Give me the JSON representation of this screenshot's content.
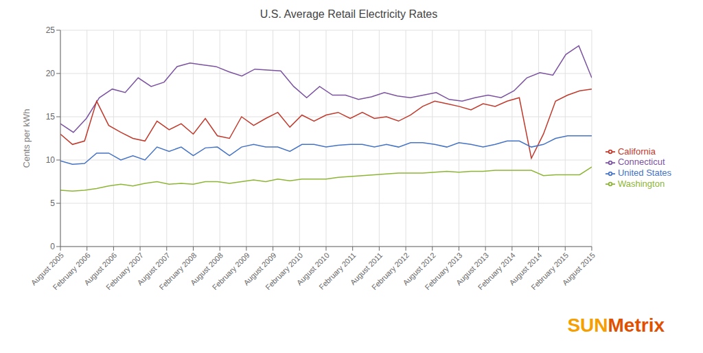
{
  "chart_data": {
    "type": "line",
    "title": "U.S. Average Retail Electricity Rates",
    "ylabel": "Cents per kWh",
    "xlim": [
      0,
      20
    ],
    "xticks": [
      {
        "value": 0,
        "label": "August 2005"
      },
      {
        "value": 1,
        "label": "February 2006"
      },
      {
        "value": 2,
        "label": "August 2006"
      },
      {
        "value": 3,
        "label": "February 2007"
      },
      {
        "value": 4,
        "label": "August 2007"
      },
      {
        "value": 5,
        "label": "February 2008"
      },
      {
        "value": 6,
        "label": "August 2008"
      },
      {
        "value": 7,
        "label": "February 2009"
      },
      {
        "value": 8,
        "label": "August 2009"
      },
      {
        "value": 9,
        "label": "February 2010"
      },
      {
        "value": 10,
        "label": "August 2010"
      },
      {
        "value": 11,
        "label": "February 2011"
      },
      {
        "value": 12,
        "label": "August 2011"
      },
      {
        "value": 13,
        "label": "February 2012"
      },
      {
        "value": 14,
        "label": "August 2012"
      },
      {
        "value": 15,
        "label": "February 2013"
      },
      {
        "value": 16,
        "label": "August 2013"
      },
      {
        "value": 17,
        "label": "February 2014"
      },
      {
        "value": 18,
        "label": "August 2014"
      },
      {
        "value": 19,
        "label": "February 2015"
      },
      {
        "value": 20,
        "label": "August 2015"
      }
    ],
    "ylim": [
      0,
      25
    ],
    "yticks": [
      0,
      5,
      10,
      15,
      20,
      25
    ],
    "grid": true,
    "legend": "right",
    "annotations": [
      "SUN",
      "Metrix"
    ],
    "series": [
      {
        "name": "Connecticut",
        "color": "#7b52a0",
        "x": [
          0,
          0.4878,
          0.9756,
          1.4634,
          1.9512,
          2.439,
          2.9268,
          3.4146,
          3.9024,
          4.3902,
          4.878,
          5.3659,
          5.8537,
          6.3415,
          6.8293,
          7.3171,
          7.8049,
          8.2927,
          8.7805,
          9.2683,
          9.7561,
          10.2439,
          10.7317,
          11.2195,
          11.7073,
          12.1951,
          12.6829,
          13.1707,
          13.6585,
          14.1463,
          14.6341,
          15.122,
          15.6098,
          16.0976,
          16.5854,
          17.0732,
          17.561,
          18.0488,
          18.5366,
          19.0244,
          19.5122,
          20
        ],
        "values": [
          14.2,
          13.2,
          14.8,
          17.2,
          18.2,
          17.8,
          19.5,
          18.5,
          19.0,
          20.8,
          21.2,
          21.0,
          20.8,
          20.2,
          19.7,
          20.5,
          20.4,
          20.3,
          18.5,
          17.2,
          18.5,
          17.5,
          17.5,
          17.0,
          17.3,
          17.8,
          17.4,
          17.2,
          17.5,
          17.8,
          17.0,
          16.8,
          17.2,
          17.5,
          17.2,
          18.0,
          19.5,
          20.1,
          19.8,
          22.2,
          23.2,
          19.5
        ]
      },
      {
        "name": "California",
        "color": "#c0392b",
        "x": [
          0,
          0.4545,
          0.9091,
          1.3636,
          1.8182,
          2.2727,
          2.7273,
          3.1818,
          3.6364,
          4.0909,
          4.5455,
          5,
          5.4545,
          5.9091,
          6.3636,
          6.8182,
          7.2727,
          7.7273,
          8.1818,
          8.6364,
          9.0909,
          9.5455,
          10,
          10.4545,
          10.9091,
          11.3636,
          11.8182,
          12.2727,
          12.7273,
          13.1818,
          13.6364,
          14.0909,
          14.5455,
          15,
          15.4545,
          15.9091,
          16.3636,
          16.8182,
          17.2727,
          17.7273,
          18.1818,
          18.6364,
          19.0909,
          19.5455,
          20
        ],
        "values": [
          13.0,
          11.8,
          12.2,
          16.8,
          14.0,
          13.2,
          12.5,
          12.2,
          14.5,
          13.5,
          14.2,
          13.0,
          14.8,
          12.8,
          12.5,
          15.0,
          14.0,
          14.8,
          15.5,
          13.8,
          15.2,
          14.5,
          15.2,
          15.5,
          14.8,
          15.5,
          14.8,
          15.0,
          14.5,
          15.2,
          16.2,
          16.8,
          16.5,
          16.2,
          15.8,
          16.5,
          16.2,
          16.8,
          17.2,
          10.2,
          13.0,
          16.8,
          17.5,
          18.0,
          18.2
        ]
      },
      {
        "name": "United States",
        "color": "#4472c4",
        "x": [
          0,
          0.4545,
          0.9091,
          1.3636,
          1.8182,
          2.2727,
          2.7273,
          3.1818,
          3.6364,
          4.0909,
          4.5455,
          5,
          5.4545,
          5.9091,
          6.3636,
          6.8182,
          7.2727,
          7.7273,
          8.1818,
          8.6364,
          9.0909,
          9.5455,
          10,
          10.4545,
          10.9091,
          11.3636,
          11.8182,
          12.2727,
          12.7273,
          13.1818,
          13.6364,
          14.0909,
          14.5455,
          15,
          15.4545,
          15.9091,
          16.3636,
          16.8182,
          17.2727,
          17.7273,
          18.1818,
          18.6364,
          19.0909,
          19.5455,
          20
        ],
        "values": [
          9.9,
          9.5,
          9.6,
          10.8,
          10.8,
          10.0,
          10.5,
          10.0,
          11.5,
          11.0,
          11.5,
          10.5,
          11.4,
          11.5,
          10.5,
          11.5,
          11.8,
          11.5,
          11.5,
          11.0,
          11.8,
          11.8,
          11.5,
          11.7,
          11.8,
          11.8,
          11.5,
          11.8,
          11.5,
          12.0,
          12.0,
          11.8,
          11.5,
          12.0,
          11.8,
          11.5,
          11.8,
          12.2,
          12.2,
          11.5,
          11.8,
          12.5,
          12.8,
          12.8,
          12.8
        ]
      },
      {
        "name": "Washington",
        "color": "#8db534",
        "x": [
          0,
          0.4545,
          0.9091,
          1.3636,
          1.8182,
          2.2727,
          2.7273,
          3.1818,
          3.6364,
          4.0909,
          4.5455,
          5,
          5.4545,
          5.9091,
          6.3636,
          6.8182,
          7.2727,
          7.7273,
          8.1818,
          8.6364,
          9.0909,
          9.5455,
          10,
          10.4545,
          10.9091,
          11.3636,
          11.8182,
          12.2727,
          12.7273,
          13.1818,
          13.6364,
          14.0909,
          14.5455,
          15,
          15.4545,
          15.9091,
          16.3636,
          16.8182,
          17.2727,
          17.7273,
          18.1818,
          18.6364,
          19.0909,
          19.5455,
          20
        ],
        "values": [
          6.5,
          6.4,
          6.5,
          6.7,
          7.0,
          7.2,
          7.0,
          7.3,
          7.5,
          7.2,
          7.3,
          7.2,
          7.5,
          7.5,
          7.3,
          7.5,
          7.7,
          7.5,
          7.8,
          7.6,
          7.8,
          7.8,
          7.8,
          8.0,
          8.1,
          8.2,
          8.3,
          8.4,
          8.5,
          8.5,
          8.5,
          8.6,
          8.7,
          8.6,
          8.7,
          8.7,
          8.8,
          8.8,
          8.8,
          8.8,
          8.2,
          8.3,
          8.3,
          8.3,
          9.2
        ]
      }
    ]
  }
}
